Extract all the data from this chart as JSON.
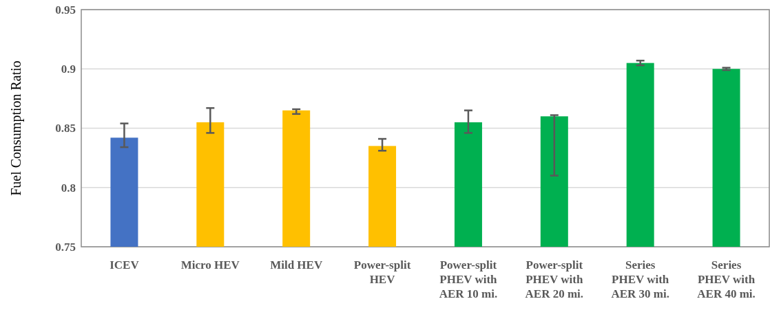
{
  "chart_data": {
    "type": "bar",
    "ylabel": "Fuel Consumption Ratio",
    "categories": [
      "ICEV",
      "Micro HEV",
      "Mild HEV",
      "Power-split HEV",
      "Power-split PHEV with AER 10 mi.",
      "Power-split PHEV with AER 20 mi.",
      "Series PHEV with AER 30 mi.",
      "Series PHEV with AER 40 mi."
    ],
    "values": [
      0.842,
      0.855,
      0.865,
      0.835,
      0.855,
      0.86,
      0.905,
      0.9
    ],
    "colors": [
      "#4472c4",
      "#ffc000",
      "#ffc000",
      "#ffc000",
      "#00b050",
      "#00b050",
      "#00b050",
      "#00b050"
    ],
    "errors": [
      [
        0.834,
        0.854
      ],
      [
        0.846,
        0.867
      ],
      [
        0.862,
        0.866
      ],
      [
        0.831,
        0.841
      ],
      [
        0.846,
        0.865
      ],
      [
        0.81,
        0.861
      ],
      [
        0.903,
        0.907
      ],
      [
        0.899,
        0.901
      ]
    ],
    "ylim": [
      0.75,
      0.95
    ],
    "yticks": [
      0.75,
      0.8,
      0.85,
      0.9,
      0.95
    ],
    "grid": "y"
  }
}
